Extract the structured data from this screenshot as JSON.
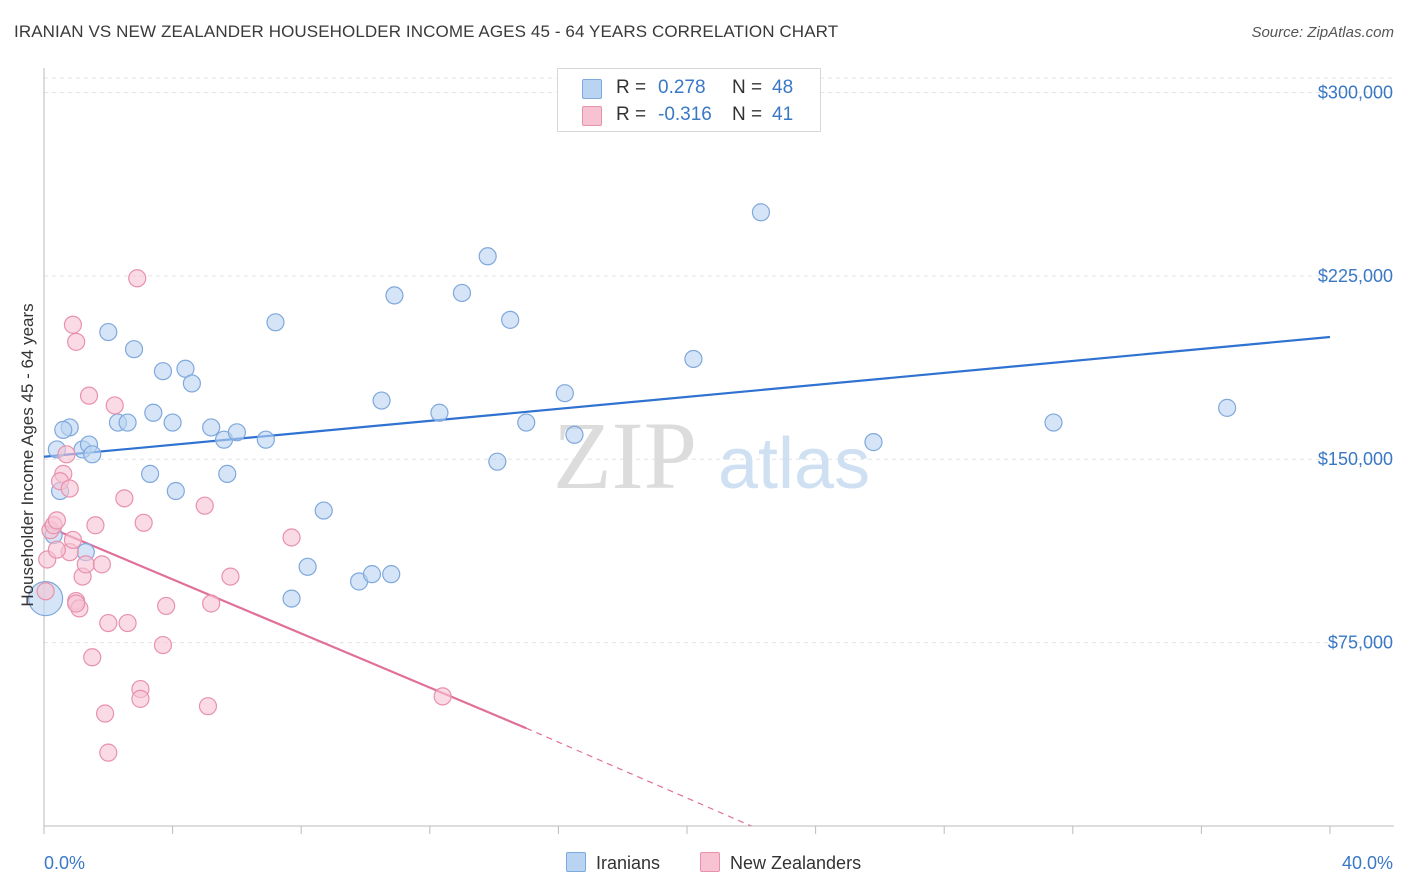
{
  "title": "IRANIAN VS NEW ZEALANDER HOUSEHOLDER INCOME AGES 45 - 64 YEARS CORRELATION CHART",
  "source": "Source: ZipAtlas.com",
  "watermark": {
    "zip": "ZIP",
    "atlas": "atlas"
  },
  "colors": {
    "blue_fill": "#b9d3f2",
    "blue_stroke": "#7fa8dc",
    "blue_line": "#2f72d1",
    "pink_fill": "#f7c3d3",
    "pink_stroke": "#e891ad",
    "pink_line": "#e0709a",
    "axis_text": "#3a78c6",
    "grid": "#e3e3e3"
  },
  "legend": {
    "r_label": "R =",
    "n_label": "N =",
    "rows": [
      {
        "name": "Iranians",
        "r": "0.278",
        "n": "48"
      },
      {
        "name": "New Zealanders",
        "r": "-0.316",
        "n": "41"
      }
    ]
  },
  "chart_data": {
    "type": "scatter",
    "title": "IRANIAN VS NEW ZEALANDER HOUSEHOLDER INCOME AGES 45 - 64 YEARS CORRELATION CHART",
    "xlabel": "",
    "ylabel": "Householder Income Ages 45 - 64 years",
    "xlim": [
      0,
      40
    ],
    "ylim": [
      0,
      310000
    ],
    "x_tick_labels": [
      "0.0%",
      "40.0%"
    ],
    "y_ticks": [
      75000,
      150000,
      225000,
      300000
    ],
    "y_tick_labels": [
      "$75,000",
      "$150,000",
      "$225,000",
      "$300,000"
    ],
    "grid": true,
    "series": [
      {
        "name": "Iranians",
        "points": [
          [
            0.05,
            93000
          ],
          [
            0.5,
            137000
          ],
          [
            0.4,
            154000
          ],
          [
            0.8,
            163000
          ],
          [
            1.2,
            154000
          ],
          [
            1.4,
            156000
          ],
          [
            1.5,
            152000
          ],
          [
            0.6,
            162000
          ],
          [
            2.0,
            202000
          ],
          [
            2.8,
            195000
          ],
          [
            2.3,
            165000
          ],
          [
            2.6,
            165000
          ],
          [
            3.4,
            169000
          ],
          [
            3.7,
            186000
          ],
          [
            4.0,
            165000
          ],
          [
            4.4,
            187000
          ],
          [
            4.6,
            181000
          ],
          [
            3.3,
            144000
          ],
          [
            5.2,
            163000
          ],
          [
            5.6,
            158000
          ],
          [
            6.0,
            161000
          ],
          [
            5.7,
            144000
          ],
          [
            4.1,
            137000
          ],
          [
            7.2,
            206000
          ],
          [
            6.9,
            158000
          ],
          [
            8.7,
            129000
          ],
          [
            8.2,
            106000
          ],
          [
            7.7,
            93000
          ],
          [
            9.8,
            100000
          ],
          [
            10.2,
            103000
          ],
          [
            10.8,
            103000
          ],
          [
            10.5,
            174000
          ],
          [
            10.9,
            217000
          ],
          [
            12.3,
            169000
          ],
          [
            13.0,
            218000
          ],
          [
            13.8,
            233000
          ],
          [
            14.1,
            149000
          ],
          [
            14.5,
            207000
          ],
          [
            15.0,
            165000
          ],
          [
            16.2,
            177000
          ],
          [
            16.5,
            160000
          ],
          [
            20.2,
            191000
          ],
          [
            22.3,
            251000
          ],
          [
            25.8,
            157000
          ],
          [
            31.4,
            165000
          ],
          [
            36.8,
            171000
          ],
          [
            0.3,
            119000
          ],
          [
            1.3,
            112000
          ]
        ]
      },
      {
        "name": "New Zealanders",
        "points": [
          [
            0.05,
            96000
          ],
          [
            0.1,
            109000
          ],
          [
            0.2,
            121000
          ],
          [
            0.3,
            123000
          ],
          [
            0.4,
            125000
          ],
          [
            0.6,
            144000
          ],
          [
            0.7,
            152000
          ],
          [
            0.5,
            141000
          ],
          [
            0.8,
            112000
          ],
          [
            0.9,
            117000
          ],
          [
            1.0,
            92000
          ],
          [
            1.1,
            89000
          ],
          [
            1.2,
            102000
          ],
          [
            1.3,
            107000
          ],
          [
            1.4,
            176000
          ],
          [
            1.5,
            69000
          ],
          [
            1.6,
            123000
          ],
          [
            1.8,
            107000
          ],
          [
            1.9,
            46000
          ],
          [
            2.0,
            83000
          ],
          [
            2.0,
            30000
          ],
          [
            2.2,
            172000
          ],
          [
            2.5,
            134000
          ],
          [
            2.6,
            83000
          ],
          [
            2.9,
            224000
          ],
          [
            0.9,
            205000
          ],
          [
            1.0,
            198000
          ],
          [
            3.1,
            124000
          ],
          [
            3.0,
            56000
          ],
          [
            3.0,
            52000
          ],
          [
            3.8,
            90000
          ],
          [
            3.7,
            74000
          ],
          [
            5.0,
            131000
          ],
          [
            5.2,
            91000
          ],
          [
            5.8,
            102000
          ],
          [
            7.7,
            118000
          ],
          [
            5.1,
            49000
          ],
          [
            12.4,
            53000
          ],
          [
            1.0,
            91000
          ],
          [
            0.8,
            138000
          ],
          [
            0.4,
            113000
          ]
        ]
      }
    ],
    "trend_lines": [
      {
        "series": "Iranians",
        "x": [
          0,
          40
        ],
        "y": [
          151000,
          200000
        ]
      },
      {
        "series": "New Zealanders",
        "x": [
          0,
          15
        ],
        "y": [
          123000,
          40000
        ],
        "dashed_to": [
          22,
          0
        ]
      }
    ]
  }
}
